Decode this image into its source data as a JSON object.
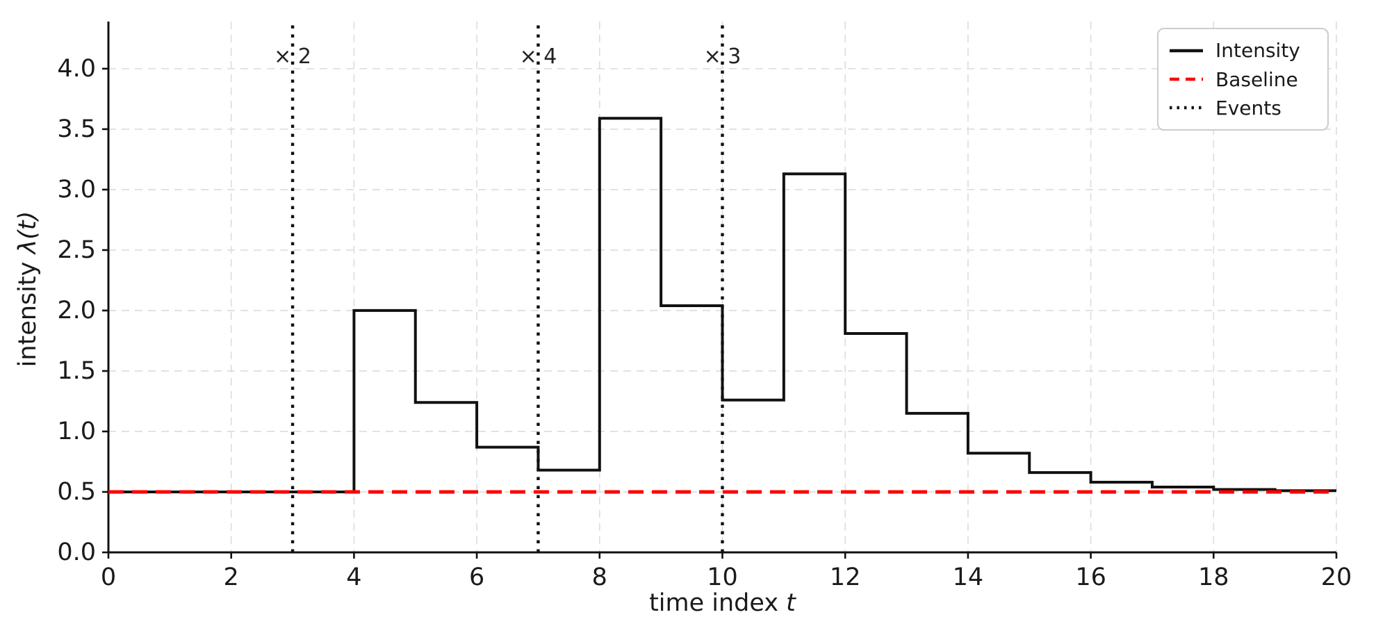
{
  "chart_data": {
    "type": "line",
    "subtype": "step-post",
    "title": "",
    "xlabel_prefix": "time index ",
    "xlabel_math": "t",
    "ylabel_prefix": "intensity ",
    "ylabel_math": "λ(t)",
    "xlim": [
      0,
      20
    ],
    "ylim": [
      0,
      4.39
    ],
    "grid": true,
    "x_step_start": 0,
    "intensity_values": [
      0.5,
      0.5,
      0.5,
      0.5,
      2.0,
      1.24,
      0.87,
      0.68,
      3.59,
      2.04,
      1.26,
      3.13,
      1.81,
      1.15,
      0.82,
      0.66,
      0.58,
      0.54,
      0.52,
      0.51
    ],
    "baseline_value": 0.5,
    "events": [
      {
        "x": 3,
        "label": "× 2"
      },
      {
        "x": 7,
        "label": "× 4"
      },
      {
        "x": 10,
        "label": "× 3"
      }
    ],
    "annotation_y": 4.1,
    "xtick_values": [
      0,
      2,
      4,
      6,
      8,
      10,
      12,
      14,
      16,
      18,
      20
    ],
    "xtick_labels": [
      "0",
      "2",
      "4",
      "6",
      "8",
      "10",
      "12",
      "14",
      "16",
      "18",
      "20"
    ],
    "ytick_values": [
      0,
      0.5,
      1,
      1.5,
      2,
      2.5,
      3,
      3.5,
      4
    ],
    "ytick_labels": [
      "0.0",
      "0.5",
      "1.0",
      "1.5",
      "2.0",
      "2.5",
      "3.0",
      "3.5",
      "4.0"
    ],
    "legend_position": "upper right",
    "legend_items": [
      {
        "label": "Intensity",
        "style": "solid",
        "color": "#111111"
      },
      {
        "label": "Baseline",
        "style": "dashed",
        "color": "#ff0000"
      },
      {
        "label": "Events",
        "style": "dotted",
        "color": "#111111"
      }
    ],
    "colors": {
      "intensity": "#111111",
      "baseline": "#ff0000",
      "events": "#111111",
      "grid": "#dcdcdc",
      "spine": "#111111",
      "tick_text": "#1a1a1a",
      "annotation": "#222222"
    }
  }
}
